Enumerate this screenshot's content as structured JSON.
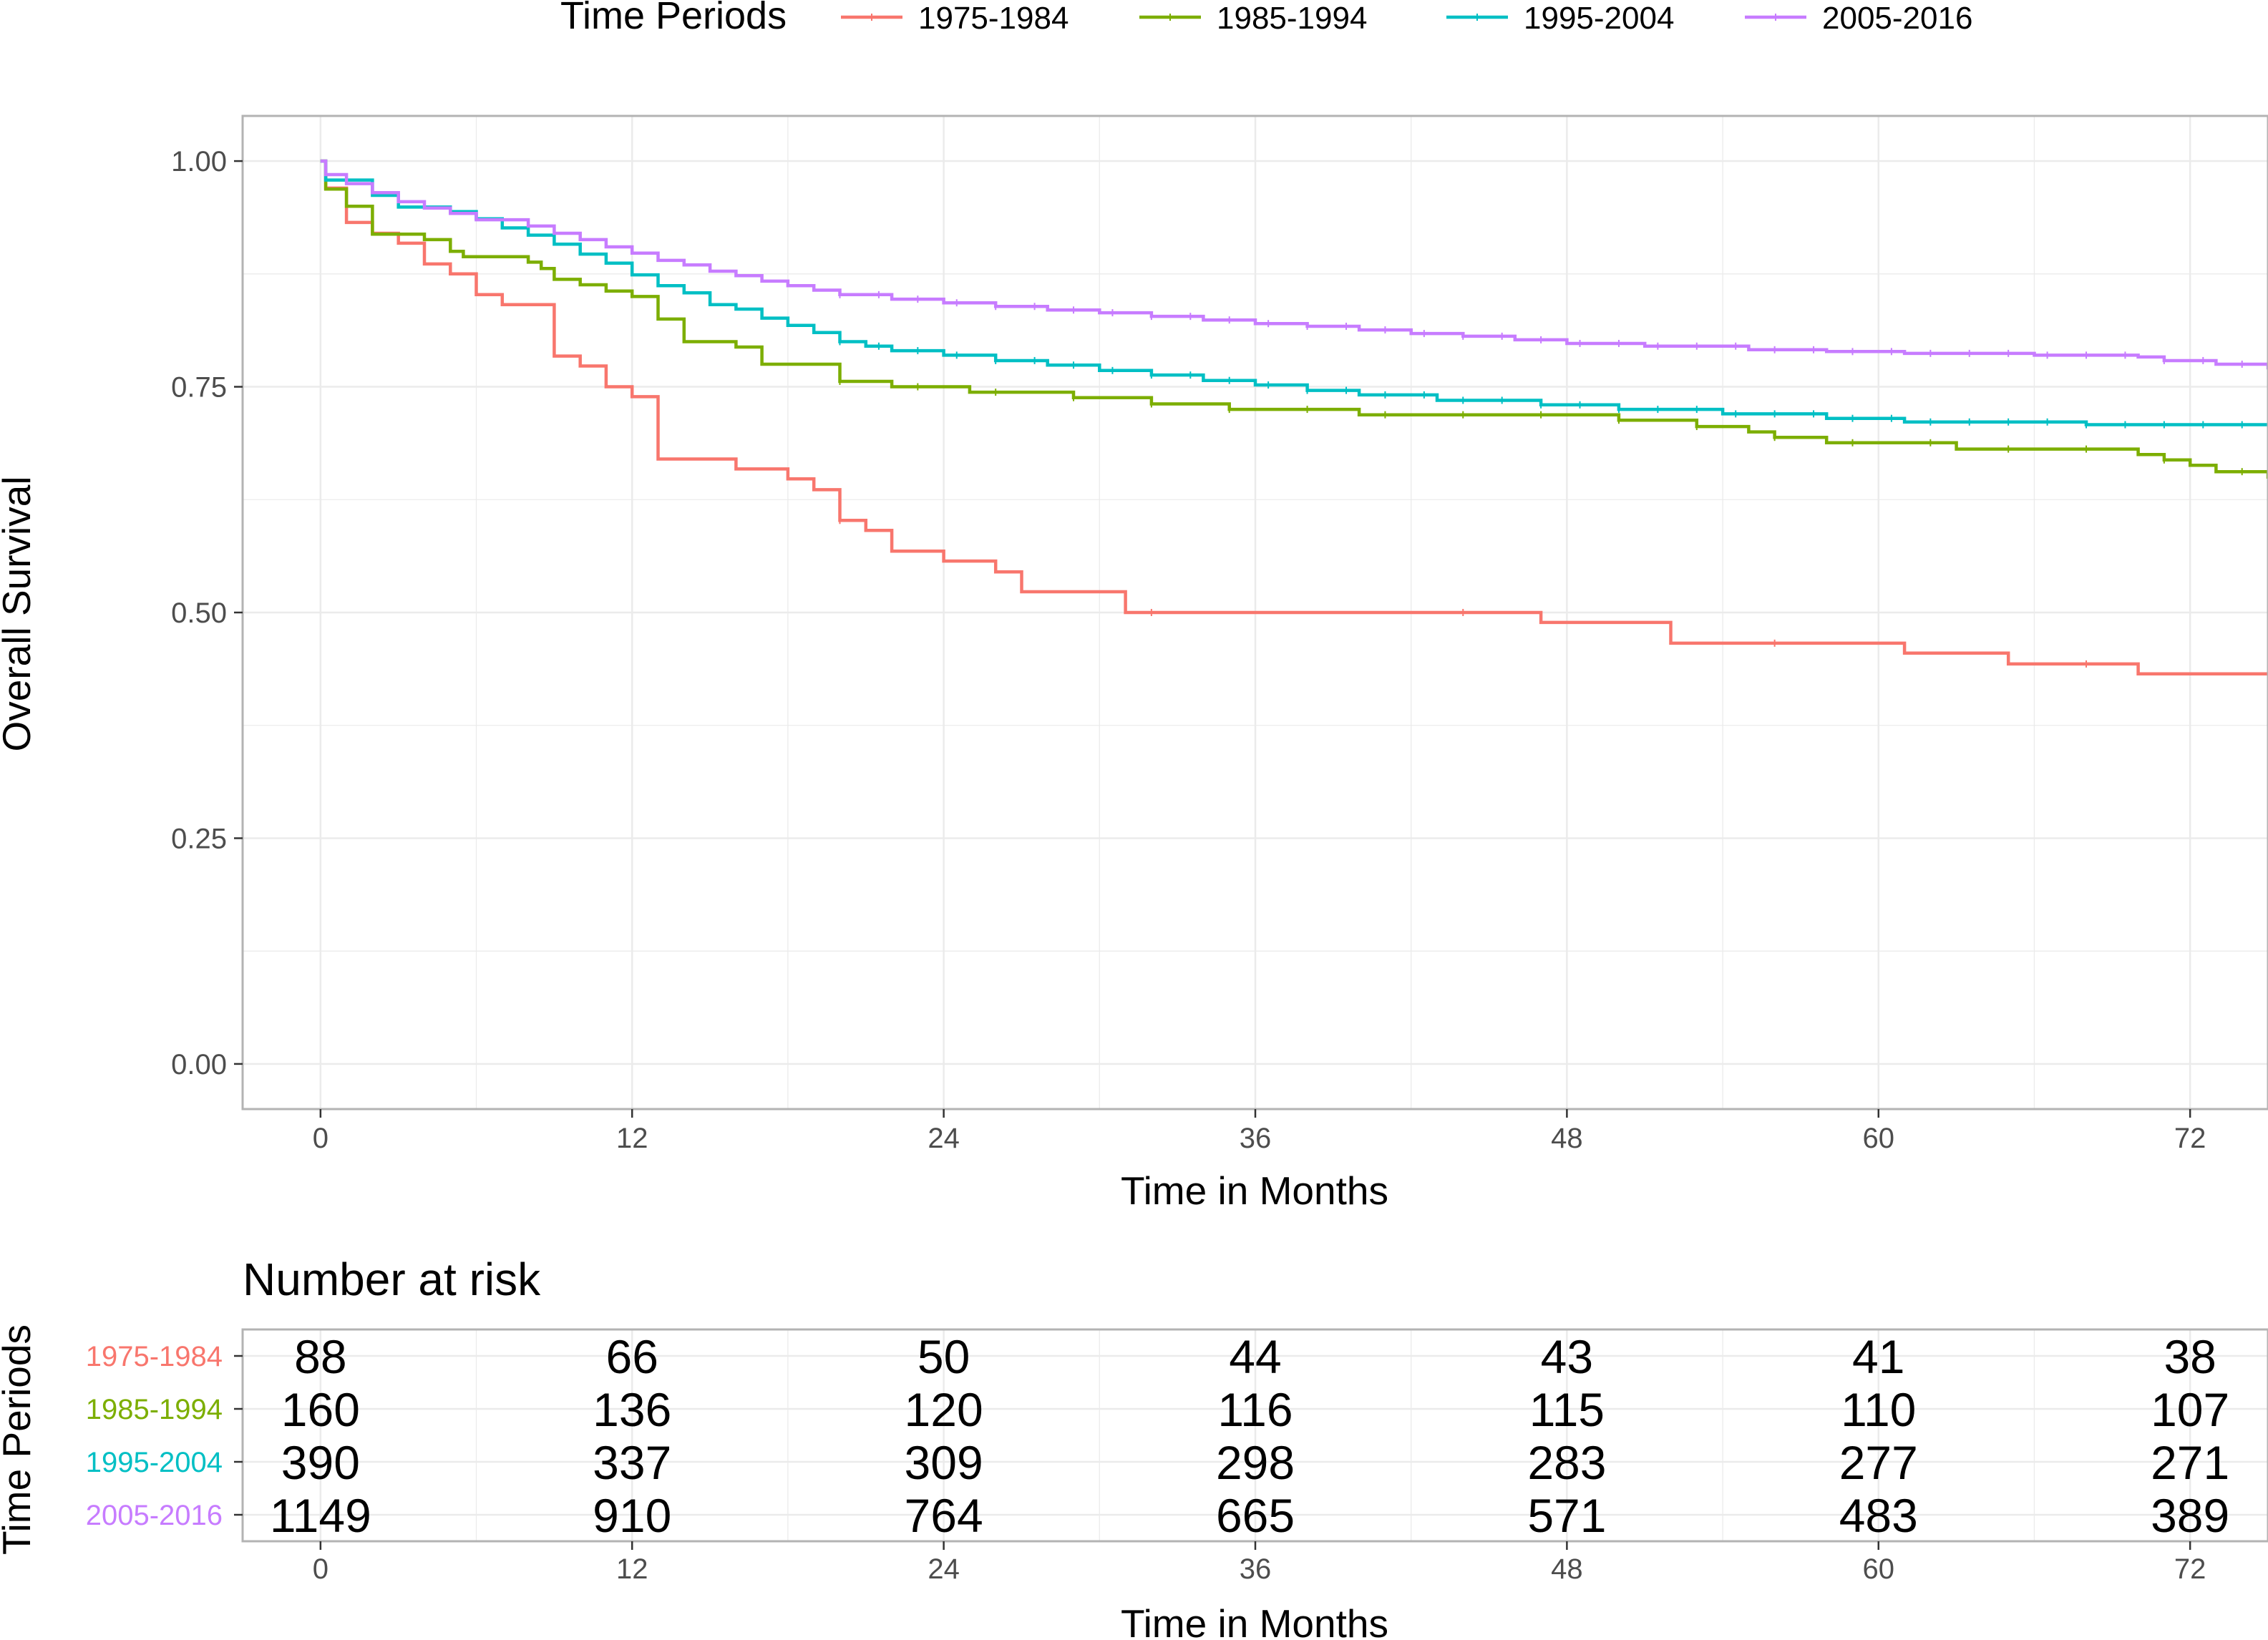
{
  "chart_data": {
    "type": "line",
    "legend": {
      "title": "Time Periods",
      "placement": "top"
    },
    "xlabel": "Time in Months",
    "ylabel": "Overall Survival",
    "xlim": [
      -3,
      75
    ],
    "ylim": [
      -0.05,
      1.05
    ],
    "x_ticks": [
      0,
      12,
      24,
      36,
      48,
      60,
      72
    ],
    "x_tick_labels": [
      "0",
      "12",
      "24",
      "36",
      "48",
      "60",
      "72"
    ],
    "y_ticks": [
      0,
      0.25,
      0.5,
      0.75,
      1.0
    ],
    "y_tick_labels": [
      "0.00",
      "0.25",
      "0.50",
      "0.75",
      "1.00"
    ],
    "grid": true,
    "series": [
      {
        "name": "1975-1984",
        "color": "#F8766D",
        "points": [
          [
            0,
            1.0
          ],
          [
            0.2,
            0.97
          ],
          [
            1,
            0.932
          ],
          [
            2,
            0.92
          ],
          [
            3,
            0.909
          ],
          [
            4,
            0.886
          ],
          [
            5,
            0.875
          ],
          [
            6,
            0.852
          ],
          [
            7,
            0.841
          ],
          [
            9,
            0.784
          ],
          [
            10,
            0.773
          ],
          [
            11,
            0.75
          ],
          [
            12,
            0.739
          ],
          [
            13,
            0.67
          ],
          [
            16,
            0.659
          ],
          [
            18,
            0.648
          ],
          [
            19,
            0.636
          ],
          [
            20,
            0.602
          ],
          [
            21,
            0.591
          ],
          [
            22,
            0.568
          ],
          [
            24,
            0.557
          ],
          [
            26,
            0.545
          ],
          [
            27,
            0.523
          ],
          [
            31,
            0.5
          ],
          [
            47,
            0.489
          ],
          [
            52,
            0.466
          ],
          [
            61,
            0.455
          ],
          [
            65,
            0.443
          ],
          [
            70,
            0.432
          ],
          [
            75.5,
            0.432
          ]
        ]
      },
      {
        "name": "1985-1994",
        "color": "#7CAE00",
        "points": [
          [
            0,
            1.0
          ],
          [
            0.2,
            0.969
          ],
          [
            1,
            0.95
          ],
          [
            2,
            0.919
          ],
          [
            4,
            0.913
          ],
          [
            5,
            0.9
          ],
          [
            5.5,
            0.894
          ],
          [
            8,
            0.888
          ],
          [
            8.5,
            0.881
          ],
          [
            9,
            0.869
          ],
          [
            10,
            0.863
          ],
          [
            11,
            0.856
          ],
          [
            12,
            0.85
          ],
          [
            13,
            0.825
          ],
          [
            14,
            0.8
          ],
          [
            16,
            0.794
          ],
          [
            17,
            0.775
          ],
          [
            20,
            0.756
          ],
          [
            22,
            0.75
          ],
          [
            25,
            0.744
          ],
          [
            29,
            0.738
          ],
          [
            32,
            0.731
          ],
          [
            35,
            0.725
          ],
          [
            40,
            0.719
          ],
          [
            50,
            0.713
          ],
          [
            53,
            0.706
          ],
          [
            55,
            0.7
          ],
          [
            56,
            0.694
          ],
          [
            58,
            0.688
          ],
          [
            63,
            0.681
          ],
          [
            70,
            0.675
          ],
          [
            71,
            0.669
          ],
          [
            72,
            0.663
          ],
          [
            73,
            0.656
          ],
          [
            75,
            0.65
          ],
          [
            75.5,
            0.65
          ]
        ]
      },
      {
        "name": "1995-2004",
        "color": "#00BFC4",
        "points": [
          [
            0,
            1.0
          ],
          [
            0.2,
            0.979
          ],
          [
            2,
            0.962
          ],
          [
            3,
            0.949
          ],
          [
            5,
            0.944
          ],
          [
            6,
            0.936
          ],
          [
            7,
            0.926
          ],
          [
            8,
            0.918
          ],
          [
            9,
            0.908
          ],
          [
            10,
            0.897
          ],
          [
            11,
            0.887
          ],
          [
            12,
            0.874
          ],
          [
            13,
            0.862
          ],
          [
            14,
            0.854
          ],
          [
            15,
            0.841
          ],
          [
            16,
            0.836
          ],
          [
            17,
            0.826
          ],
          [
            18,
            0.818
          ],
          [
            19,
            0.81
          ],
          [
            20,
            0.8
          ],
          [
            21,
            0.795
          ],
          [
            22,
            0.79
          ],
          [
            24,
            0.785
          ],
          [
            26,
            0.779
          ],
          [
            28,
            0.774
          ],
          [
            30,
            0.768
          ],
          [
            32,
            0.763
          ],
          [
            34,
            0.757
          ],
          [
            36,
            0.752
          ],
          [
            38,
            0.746
          ],
          [
            40,
            0.741
          ],
          [
            43,
            0.735
          ],
          [
            47,
            0.73
          ],
          [
            50,
            0.725
          ],
          [
            54,
            0.72
          ],
          [
            58,
            0.715
          ],
          [
            61,
            0.711
          ],
          [
            68,
            0.708
          ],
          [
            75.5,
            0.706
          ]
        ]
      },
      {
        "name": "2005-2016",
        "color": "#C77CFF",
        "points": [
          [
            0,
            1.0
          ],
          [
            0.2,
            0.985
          ],
          [
            1,
            0.975
          ],
          [
            2,
            0.965
          ],
          [
            3,
            0.955
          ],
          [
            4,
            0.948
          ],
          [
            5,
            0.942
          ],
          [
            6,
            0.935
          ],
          [
            8,
            0.928
          ],
          [
            9,
            0.92
          ],
          [
            10,
            0.913
          ],
          [
            11,
            0.905
          ],
          [
            12,
            0.898
          ],
          [
            13,
            0.89
          ],
          [
            14,
            0.885
          ],
          [
            15,
            0.878
          ],
          [
            16,
            0.873
          ],
          [
            17,
            0.867
          ],
          [
            18,
            0.862
          ],
          [
            19,
            0.857
          ],
          [
            20,
            0.852
          ],
          [
            22,
            0.847
          ],
          [
            24,
            0.843
          ],
          [
            26,
            0.839
          ],
          [
            28,
            0.835
          ],
          [
            30,
            0.832
          ],
          [
            32,
            0.828
          ],
          [
            34,
            0.824
          ],
          [
            36,
            0.82
          ],
          [
            38,
            0.817
          ],
          [
            40,
            0.813
          ],
          [
            42,
            0.809
          ],
          [
            44,
            0.806
          ],
          [
            46,
            0.802
          ],
          [
            48,
            0.798
          ],
          [
            51,
            0.795
          ],
          [
            55,
            0.791
          ],
          [
            58,
            0.789
          ],
          [
            61,
            0.787
          ],
          [
            66,
            0.785
          ],
          [
            70,
            0.783
          ],
          [
            71,
            0.779
          ],
          [
            73,
            0.775
          ],
          [
            75,
            0.771
          ],
          [
            75.5,
            0.771
          ]
        ]
      }
    ]
  },
  "risk_table": {
    "title": "Number at risk",
    "ylabel": "Time Periods",
    "xlabel": "Time in Months",
    "times": [
      0,
      12,
      24,
      36,
      48,
      60,
      72
    ],
    "tick_labels": [
      "0",
      "12",
      "24",
      "36",
      "48",
      "60",
      "72"
    ],
    "rows": [
      {
        "name": "1975-1984",
        "color": "#F8766D",
        "counts": [
          "88",
          "66",
          "50",
          "44",
          "43",
          "41",
          "38"
        ]
      },
      {
        "name": "1985-1994",
        "color": "#7CAE00",
        "counts": [
          "160",
          "136",
          "120",
          "116",
          "115",
          "110",
          "107"
        ]
      },
      {
        "name": "1995-2004",
        "color": "#00BFC4",
        "counts": [
          "390",
          "337",
          "309",
          "298",
          "283",
          "277",
          "271"
        ]
      },
      {
        "name": "2005-2016",
        "color": "#C77CFF",
        "counts": [
          "1149",
          "910",
          "764",
          "665",
          "571",
          "483",
          "389"
        ]
      }
    ]
  }
}
